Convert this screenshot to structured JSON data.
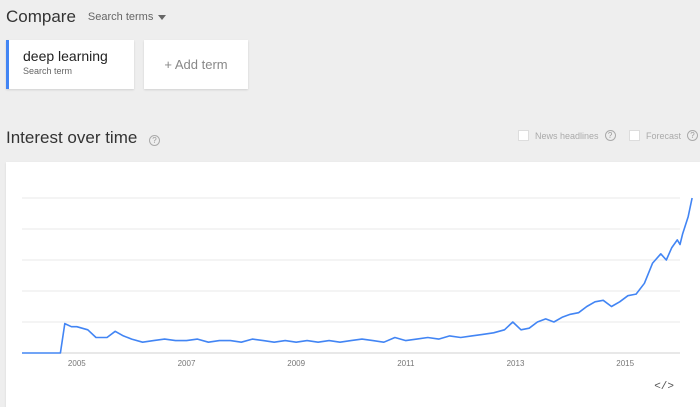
{
  "header": {
    "compare_label": "Compare",
    "search_terms_label": "Search terms"
  },
  "terms": [
    {
      "name": "deep learning",
      "subtitle": "Search term",
      "color": "#4285f4"
    }
  ],
  "add_term_label": "+ Add term",
  "section": {
    "title": "Interest over time",
    "options": [
      {
        "label": "News headlines",
        "checked": false
      },
      {
        "label": "Forecast",
        "checked": false
      }
    ]
  },
  "chart_data": {
    "type": "line",
    "series_color": "#4285f4",
    "grid": true,
    "ylim": [
      0,
      100
    ],
    "xlim": [
      2004.0,
      2016.0
    ],
    "tick_labels": [
      "2005",
      "2007",
      "2009",
      "2011",
      "2013",
      "2015"
    ],
    "tick_positions": [
      2005,
      2007,
      2009,
      2011,
      2013,
      2015
    ],
    "series": [
      {
        "values": [
          [
            2004.0,
            0
          ],
          [
            2004.7,
            0
          ],
          [
            2004.78,
            19
          ],
          [
            2004.9,
            17
          ],
          [
            2005.0,
            17
          ],
          [
            2005.2,
            15
          ],
          [
            2005.35,
            10
          ],
          [
            2005.55,
            10
          ],
          [
            2005.7,
            14
          ],
          [
            2005.85,
            11
          ],
          [
            2006.0,
            9
          ],
          [
            2006.2,
            7
          ],
          [
            2006.4,
            8
          ],
          [
            2006.6,
            9
          ],
          [
            2006.8,
            8
          ],
          [
            2007.0,
            8
          ],
          [
            2007.2,
            9
          ],
          [
            2007.4,
            7
          ],
          [
            2007.6,
            8
          ],
          [
            2007.8,
            8
          ],
          [
            2008.0,
            7
          ],
          [
            2008.2,
            9
          ],
          [
            2008.4,
            8
          ],
          [
            2008.6,
            7
          ],
          [
            2008.8,
            8
          ],
          [
            2009.0,
            7
          ],
          [
            2009.2,
            8
          ],
          [
            2009.4,
            7
          ],
          [
            2009.6,
            8
          ],
          [
            2009.8,
            7
          ],
          [
            2010.0,
            8
          ],
          [
            2010.2,
            9
          ],
          [
            2010.4,
            8
          ],
          [
            2010.6,
            7
          ],
          [
            2010.8,
            10
          ],
          [
            2011.0,
            8
          ],
          [
            2011.2,
            9
          ],
          [
            2011.4,
            10
          ],
          [
            2011.6,
            9
          ],
          [
            2011.8,
            11
          ],
          [
            2012.0,
            10
          ],
          [
            2012.2,
            11
          ],
          [
            2012.4,
            12
          ],
          [
            2012.6,
            13
          ],
          [
            2012.8,
            15
          ],
          [
            2012.95,
            20
          ],
          [
            2013.1,
            15
          ],
          [
            2013.25,
            16
          ],
          [
            2013.4,
            20
          ],
          [
            2013.55,
            22
          ],
          [
            2013.7,
            20
          ],
          [
            2013.85,
            23
          ],
          [
            2014.0,
            25
          ],
          [
            2014.15,
            26
          ],
          [
            2014.3,
            30
          ],
          [
            2014.45,
            33
          ],
          [
            2014.6,
            34
          ],
          [
            2014.75,
            30
          ],
          [
            2014.9,
            33
          ],
          [
            2015.05,
            37
          ],
          [
            2015.2,
            38
          ],
          [
            2015.35,
            45
          ],
          [
            2015.5,
            58
          ],
          [
            2015.65,
            64
          ],
          [
            2015.75,
            60
          ],
          [
            2015.85,
            68
          ],
          [
            2015.95,
            73
          ],
          [
            2016.0,
            70
          ],
          [
            2016.05,
            77
          ],
          [
            2016.15,
            88
          ],
          [
            2016.22,
            100
          ]
        ]
      }
    ]
  },
  "embed_icon": "code-embed-icon",
  "embed_glyph": "</>"
}
